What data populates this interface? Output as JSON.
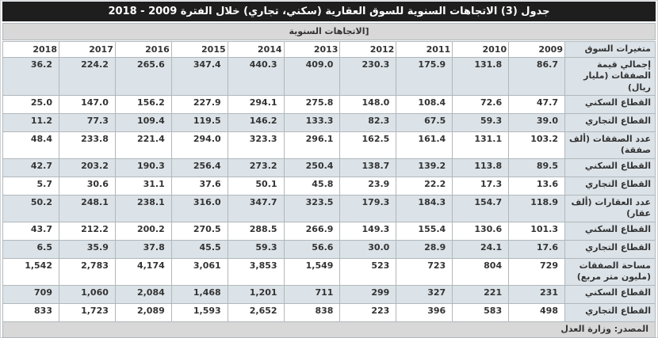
{
  "title": "جدول (3) الاتجاهات السنوية للسوق العقارية (سكني، تجاري) خلال الفترة 2009 - 2018",
  "subtitle_bracket": "]",
  "subtitle": "الاتجاهات السنوية",
  "table": {
    "variable_header": "متغيرات السوق",
    "years": [
      "2009",
      "2010",
      "2011",
      "2012",
      "2013",
      "2014",
      "2015",
      "2016",
      "2017",
      "2018"
    ],
    "rows": [
      {
        "label": "إجمالي قيمة الصفقات (مليار ريال)",
        "group": true,
        "values": [
          "86.7",
          "131.8",
          "175.9",
          "230.3",
          "409.0",
          "440.3",
          "347.4",
          "265.6",
          "224.2",
          "36.2"
        ]
      },
      {
        "label": "القطاع السكني",
        "group": false,
        "values": [
          "47.7",
          "72.6",
          "108.4",
          "148.0",
          "275.8",
          "294.1",
          "227.9",
          "156.2",
          "147.0",
          "25.0"
        ]
      },
      {
        "label": "القطاع التجاري",
        "group": false,
        "values": [
          "39.0",
          "59.3",
          "67.5",
          "82.3",
          "133.3",
          "146.2",
          "119.5",
          "109.4",
          "77.3",
          "11.2"
        ]
      },
      {
        "label": "عدد الصفقات (ألف صفقة)",
        "group": true,
        "values": [
          "103.2",
          "131.1",
          "161.4",
          "162.5",
          "296.1",
          "323.3",
          "294.0",
          "221.4",
          "233.8",
          "48.4"
        ]
      },
      {
        "label": "القطاع السكني",
        "group": false,
        "values": [
          "89.5",
          "113.8",
          "139.2",
          "138.7",
          "250.4",
          "273.2",
          "256.4",
          "190.3",
          "203.2",
          "42.7"
        ]
      },
      {
        "label": "القطاع التجاري",
        "group": false,
        "values": [
          "13.6",
          "17.3",
          "22.2",
          "23.9",
          "45.8",
          "50.1",
          "37.6",
          "31.1",
          "30.6",
          "5.7"
        ]
      },
      {
        "label": "عدد العقارات (ألف عقار)",
        "group": true,
        "values": [
          "118.9",
          "154.7",
          "184.3",
          "179.3",
          "323.5",
          "347.7",
          "316.0",
          "238.1",
          "248.1",
          "50.2"
        ]
      },
      {
        "label": "القطاع السكني",
        "group": false,
        "values": [
          "101.3",
          "130.6",
          "155.4",
          "149.3",
          "266.9",
          "288.5",
          "270.5",
          "200.2",
          "212.2",
          "43.7"
        ]
      },
      {
        "label": "القطاع التجاري",
        "group": false,
        "values": [
          "17.6",
          "24.1",
          "28.9",
          "30.0",
          "56.6",
          "59.3",
          "45.5",
          "37.8",
          "35.9",
          "6.5"
        ]
      },
      {
        "label": "مساحة الصفقات (مليون متر مربع)",
        "group": true,
        "values": [
          "729",
          "804",
          "723",
          "523",
          "1,549",
          "3,853",
          "3,061",
          "4,174",
          "2,783",
          "1,542"
        ]
      },
      {
        "label": "القطاع السكني",
        "group": false,
        "values": [
          "231",
          "221",
          "327",
          "299",
          "711",
          "1,201",
          "1,468",
          "2,084",
          "1,060",
          "709"
        ]
      },
      {
        "label": "القطاع التجاري",
        "group": false,
        "values": [
          "498",
          "583",
          "396",
          "223",
          "838",
          "2,652",
          "1,593",
          "2,089",
          "1,723",
          "833"
        ]
      }
    ]
  },
  "footer_source": "المصدر: وزارة العدل",
  "colors": {
    "title_bar_bg": "#1e1e1e",
    "title_text": "#ffffff",
    "band_bg": "#d8d8d8",
    "shaded_row_bg": "#dce3e8",
    "border": "#b0b8bc",
    "text": "#333333"
  }
}
